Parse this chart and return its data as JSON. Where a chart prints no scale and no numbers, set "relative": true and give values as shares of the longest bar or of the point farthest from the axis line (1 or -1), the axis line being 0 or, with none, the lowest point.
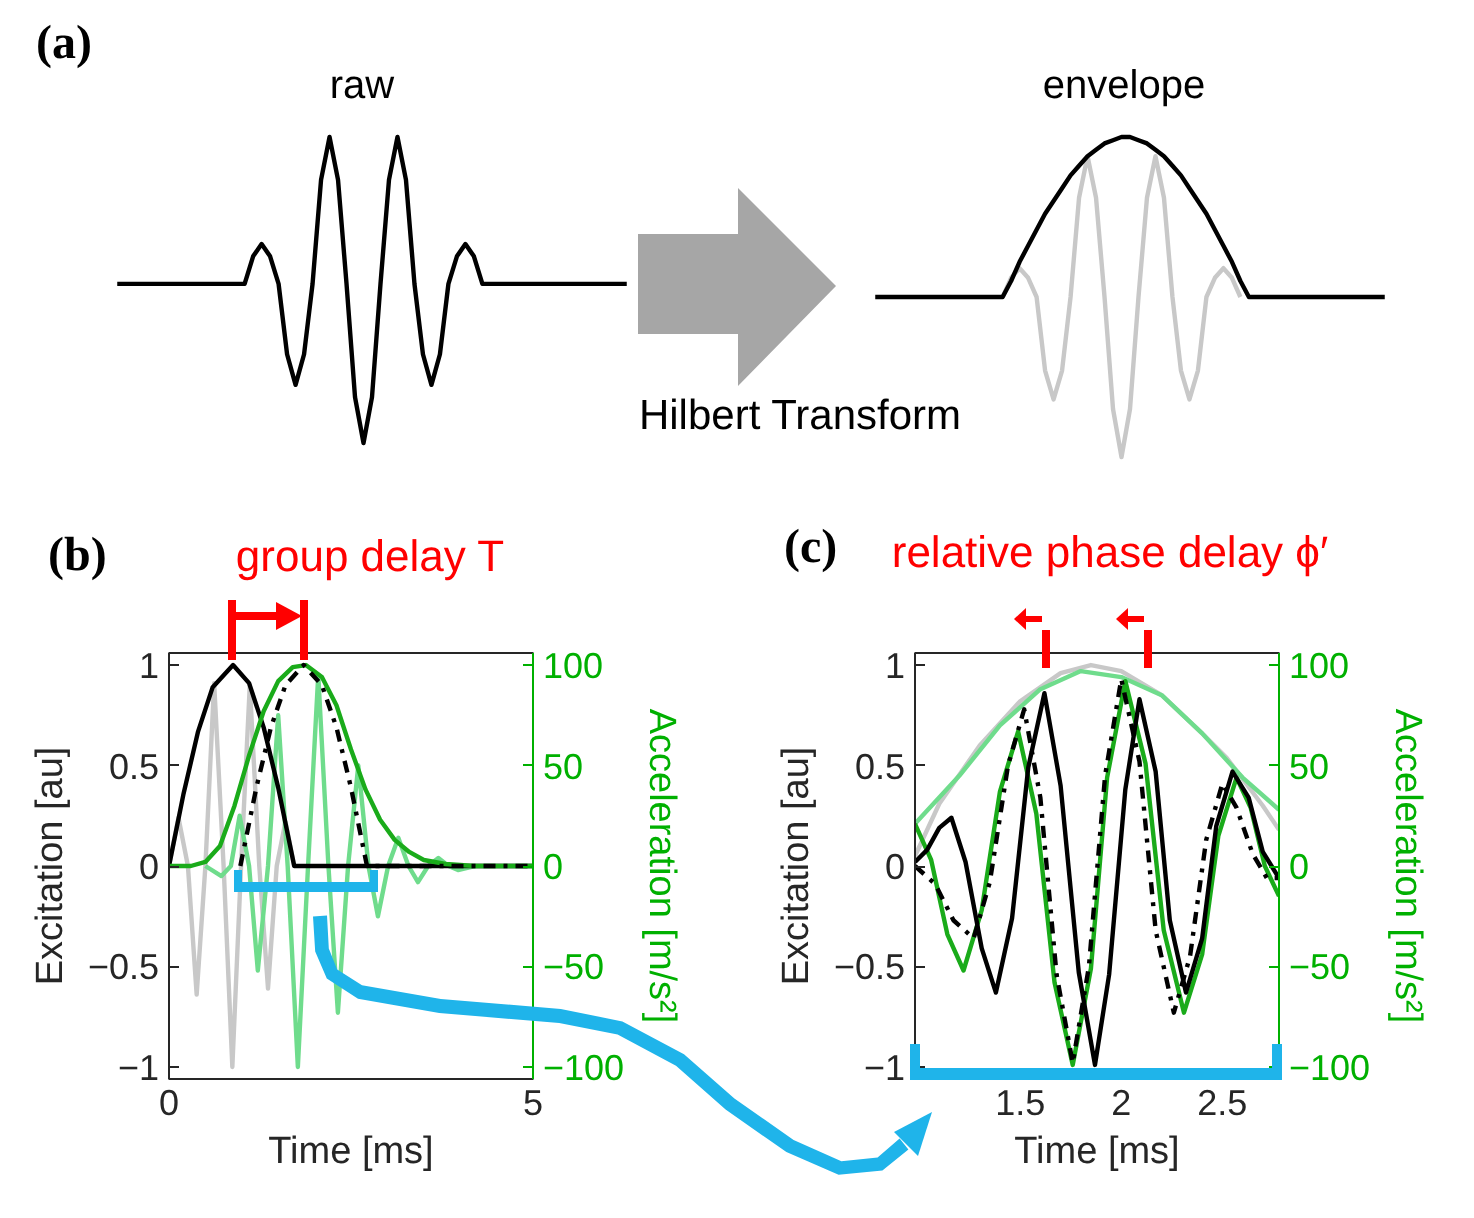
{
  "chart_data": [
    {
      "type": "line",
      "relative": true,
      "annotations": [
        "(a)"
      ],
      "categories": [
        null,
        null,
        null,
        null,
        null,
        null,
        null,
        null,
        null,
        null,
        null,
        null,
        null,
        null,
        null,
        null,
        null,
        null,
        null,
        null,
        null,
        null,
        null,
        null,
        null,
        null,
        null,
        null,
        null,
        null,
        null,
        null,
        null,
        null,
        null,
        null,
        null,
        null,
        null,
        null,
        null,
        null,
        null,
        null,
        null,
        null,
        null,
        null,
        null,
        null,
        null,
        null,
        null,
        null,
        null,
        null,
        null,
        null,
        null,
        null,
        null
      ],
      "series": [
        {
          "name": "raw",
          "color": "#000000",
          "values": [
            0.52,
            0.52,
            0.52,
            0.52,
            0.52,
            0.52,
            0.52,
            0.52,
            0.52,
            0.52,
            0.52,
            0.52,
            0.52,
            0.52,
            0.52,
            0.52,
            0.61,
            0.65,
            0.61,
            0.52,
            0.29,
            0.19,
            0.29,
            0.52,
            0.86,
            1.0,
            0.86,
            0.52,
            0.15,
            0,
            0.15,
            0.52,
            0.86,
            1.0,
            0.86,
            0.52,
            0.29,
            0.19,
            0.29,
            0.52,
            0.61,
            0.65,
            0.61,
            0.52,
            0.52,
            0.52,
            0.52,
            0.52,
            0.52,
            0.52,
            0.52,
            0.52,
            0.52,
            0.52,
            0.52,
            0.52,
            0.52,
            0.52,
            0.52,
            0.52,
            0.52
          ]
        }
      ]
    },
    {
      "type": "line",
      "relative": true,
      "annotations": [
        "Hilbert Transform"
      ],
      "categories": [
        null,
        null,
        null,
        null,
        null,
        null,
        null,
        null,
        null,
        null,
        null,
        null,
        null,
        null,
        null,
        null,
        null,
        null,
        null,
        null,
        null,
        null,
        null,
        null,
        null,
        null,
        null,
        null,
        null,
        null,
        null,
        null,
        null,
        null,
        null,
        null,
        null,
        null,
        null,
        null,
        null,
        null,
        null,
        null,
        null,
        null,
        null,
        null,
        null,
        null,
        null,
        null,
        null,
        null,
        null,
        null,
        null,
        null,
        null,
        null,
        null
      ],
      "series": [
        {
          "color": "#c8c8c8",
          "values": [
            null,
            null,
            null,
            null,
            null,
            null,
            null,
            null,
            null,
            null,
            null,
            null,
            null,
            null,
            null,
            0.5,
            0.56,
            0.59,
            0.56,
            0.5,
            0.27,
            0.18,
            0.27,
            0.5,
            0.81,
            0.94,
            0.81,
            0.5,
            0.15,
            0,
            0.15,
            0.5,
            0.81,
            0.94,
            0.81,
            0.5,
            0.27,
            0.18,
            0.27,
            0.5,
            0.56,
            0.59,
            0.56,
            0.5,
            null,
            null,
            null,
            null,
            null,
            null,
            null,
            null,
            null,
            null,
            null,
            null,
            null,
            null,
            null,
            null,
            null
          ]
        },
        {
          "name": "envelope",
          "color": "#000000",
          "values": [
            0.5,
            0.5,
            0.5,
            0.5,
            0.5,
            0.5,
            0.5,
            0.5,
            0.5,
            0.5,
            0.5,
            0.5,
            0.5,
            0.5,
            0.5,
            0.5,
            0.55,
            0.61,
            0.66,
            0.71,
            0.76,
            0.8,
            0.84,
            0.88,
            0.91,
            0.94,
            0.96,
            0.98,
            0.99,
            1.0,
            1.0,
            0.99,
            0.98,
            0.96,
            0.94,
            0.91,
            0.88,
            0.84,
            0.8,
            0.76,
            0.71,
            0.66,
            0.61,
            0.55,
            0.5,
            0.5,
            0.5,
            0.5,
            0.5,
            0.5,
            0.5,
            0.5,
            0.5,
            0.5,
            0.5,
            0.5,
            0.5,
            0.5,
            0.5,
            0.5,
            0.5
          ]
        }
      ]
    },
    {
      "type": "line",
      "title": "group delay T",
      "annotations": [
        "(b)"
      ],
      "xlabel": "Time [ms]",
      "ylabel": "Excitation [au]",
      "y2label": "Acceleration [m/s²]",
      "xlim": [
        0,
        5
      ],
      "xticks": [
        0,
        5
      ],
      "ylim": [
        -1.06,
        1.06
      ],
      "yticks": [
        -1,
        -0.5,
        0,
        0.5,
        1
      ],
      "y2lim": [
        -106,
        106
      ],
      "y2ticks": [
        -100,
        -50,
        0,
        50,
        100
      ],
      "series": [
        {
          "color": "#c8c8c8",
          "x": [
            0,
            0.13,
            0.26,
            0.38,
            0.5,
            0.62,
            0.75,
            0.87,
            0.99,
            1.11,
            1.24,
            1.36,
            1.48,
            1.6,
            1.72
          ],
          "values": [
            0,
            0.24,
            0,
            -0.64,
            0,
            0.91,
            0,
            -1,
            0,
            0.9,
            0,
            -0.61,
            0,
            0.22,
            0
          ]
        },
        {
          "color": "#6fdc8c",
          "axis": "y2",
          "x": [
            0.5,
            0.72,
            0.85,
            0.97,
            1.1,
            1.22,
            1.36,
            1.5,
            1.63,
            1.77,
            1.91,
            2.05,
            2.19,
            2.32,
            2.46,
            2.6,
            2.74,
            2.87,
            3.01,
            3.15,
            3.29,
            3.42,
            3.56,
            3.7,
            3.84,
            3.97,
            4.2,
            5
          ],
          "values": [
            0,
            -5,
            0,
            25,
            0,
            -52,
            0,
            75,
            0,
            -100,
            0,
            95,
            0,
            -73,
            0,
            50,
            0,
            -25,
            0,
            14,
            0,
            -8,
            0,
            4,
            0,
            -2,
            0,
            0
          ]
        },
        {
          "color": "#000000",
          "x": [
            0,
            0.2,
            0.4,
            0.6,
            0.88,
            1.1,
            1.3,
            1.5,
            1.72,
            5
          ],
          "values": [
            0,
            0.36,
            0.67,
            0.89,
            1,
            0.91,
            0.69,
            0.39,
            0,
            0
          ]
        },
        {
          "color": "#1aab1a",
          "axis": "y2",
          "x": [
            0,
            0.3,
            0.5,
            0.7,
            0.9,
            1.1,
            1.3,
            1.5,
            1.7,
            1.88,
            2.1,
            2.3,
            2.5,
            2.7,
            2.9,
            3.1,
            3.3,
            3.5,
            3.8,
            4.2,
            5
          ],
          "values": [
            0,
            0,
            2,
            10,
            30,
            55,
            77,
            92,
            99,
            100,
            94,
            80,
            58,
            38,
            23,
            13,
            7,
            3,
            1,
            0,
            0
          ]
        },
        {
          "color": "#000000",
          "line_style": "dashdot",
          "x": [
            0.98,
            1.2,
            1.4,
            1.6,
            1.85,
            2.1,
            2.3,
            2.5,
            2.72,
            5
          ],
          "values": [
            0,
            0.39,
            0.69,
            0.9,
            1,
            0.9,
            0.69,
            0.39,
            0,
            0
          ]
        }
      ]
    },
    {
      "type": "line",
      "title": "relative phase delay ϕ′",
      "annotations": [
        "(c)"
      ],
      "xlabel": "Time [ms]",
      "ylabel": "Excitation [au]",
      "y2label": "Acceleration [m/s²]",
      "xlim": [
        0.98,
        2.78
      ],
      "xticks": [
        1.5,
        2,
        2.5
      ],
      "ylim": [
        -1.06,
        1.06
      ],
      "yticks": [
        -1,
        -0.5,
        0,
        0.5,
        1
      ],
      "y2lim": [
        -106,
        106
      ],
      "y2ticks": [
        -100,
        -50,
        0,
        50,
        100
      ],
      "series": [
        {
          "color": "#c8c8c8",
          "x": [
            0.98,
            1.1,
            1.3,
            1.5,
            1.7,
            1.85,
            2.0,
            2.2,
            2.4,
            2.52,
            2.7,
            2.78
          ],
          "values": [
            0.05,
            0.31,
            0.6,
            0.82,
            0.96,
            1.0,
            0.97,
            0.85,
            0.66,
            0.54,
            0.3,
            0.18
          ]
        },
        {
          "color": "#6fdc8c",
          "axis": "y2",
          "x": [
            0.98,
            1.2,
            1.4,
            1.6,
            1.8,
            2.0,
            2.2,
            2.4,
            2.6,
            2.78
          ],
          "values": [
            21,
            45,
            70,
            88,
            97,
            94,
            85,
            66,
            44,
            28
          ]
        },
        {
          "color": "#1aab1a",
          "axis": "y2",
          "x": [
            0.98,
            1.06,
            1.14,
            1.22,
            1.31,
            1.4,
            1.49,
            1.58,
            1.67,
            1.76,
            1.85,
            1.93,
            2.02,
            2.12,
            2.21,
            2.31,
            2.4,
            2.48,
            2.57,
            2.64,
            2.71,
            2.78
          ],
          "values": [
            21,
            3,
            -34,
            -52,
            -22,
            37,
            67,
            26,
            -58,
            -99,
            -51,
            44,
            92,
            51,
            -32,
            -73,
            -44,
            15,
            44,
            29,
            0,
            -15
          ]
        },
        {
          "color": "#000000",
          "x": [
            0.98,
            1.04,
            1.1,
            1.16,
            1.23,
            1.31,
            1.38,
            1.46,
            1.54,
            1.62,
            1.7,
            1.79,
            1.87,
            1.94,
            2.02,
            2.09,
            2.17,
            2.24,
            2.32,
            2.4,
            2.47,
            2.55,
            2.63,
            2.7,
            2.78
          ],
          "values": [
            0.02,
            0.08,
            0.19,
            0.24,
            0.02,
            -0.41,
            -0.63,
            -0.26,
            0.49,
            0.86,
            0.4,
            -0.53,
            -0.99,
            -0.54,
            0.38,
            0.83,
            0.47,
            -0.27,
            -0.63,
            -0.36,
            0.2,
            0.47,
            0.34,
            0.07,
            -0.06
          ]
        },
        {
          "color": "#000000",
          "line_style": "dashdot",
          "x": [
            0.98,
            1.08,
            1.17,
            1.27,
            1.35,
            1.44,
            1.52,
            1.6,
            1.68,
            1.76,
            1.84,
            1.92,
            2.0,
            2.09,
            2.17,
            2.26,
            2.34,
            2.42,
            2.5,
            2.57,
            2.65,
            2.72,
            2.78
          ],
          "values": [
            0,
            -0.09,
            -0.27,
            -0.36,
            -0.08,
            0.5,
            0.78,
            0.34,
            -0.54,
            -0.98,
            -0.5,
            0.45,
            0.93,
            0.52,
            -0.32,
            -0.73,
            -0.45,
            0.13,
            0.41,
            0.29,
            0.06,
            -0.06,
            -0.06
          ]
        }
      ]
    }
  ]
}
